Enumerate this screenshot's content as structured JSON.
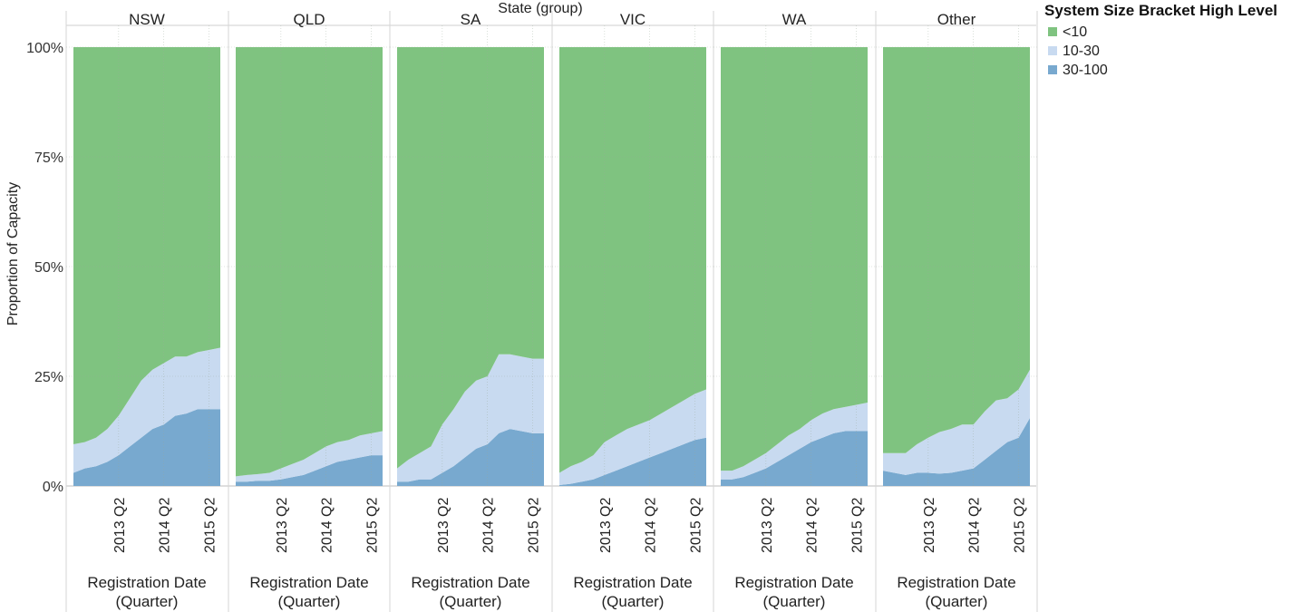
{
  "chart_data": {
    "type": "area",
    "stacked_percent": true,
    "facet_header": "State (group)",
    "ylabel": "Proportion of Capacity",
    "yticks": [
      "0%",
      "25%",
      "50%",
      "75%",
      "100%"
    ],
    "ylim": [
      0,
      1
    ],
    "grid": true,
    "legend": {
      "title": "System Size Bracket High Level",
      "placement": "top-right",
      "entries": [
        "<10",
        "10-30",
        "30-100"
      ]
    },
    "colors": {
      "<10": "#7fc380",
      "10-30": "#c8daf0",
      "30-100": "#78a9cf"
    },
    "x_quarters": [
      "2012 Q2",
      "2012 Q3",
      "2012 Q4",
      "2013 Q1",
      "2013 Q2",
      "2013 Q3",
      "2013 Q4",
      "2014 Q1",
      "2014 Q2",
      "2014 Q3",
      "2014 Q4",
      "2015 Q1",
      "2015 Q2",
      "2015 Q3"
    ],
    "xtick_labels": [
      "2013 Q2",
      "2014 Q2",
      "2015 Q2"
    ],
    "xlabel_lines": [
      "Registration Date",
      "(Quarter)"
    ],
    "panels": [
      {
        "state": "NSW",
        "series": [
          {
            "name": "30-100",
            "values": [
              0.03,
              0.04,
              0.045,
              0.055,
              0.07,
              0.09,
              0.11,
              0.13,
              0.14,
              0.16,
              0.165,
              0.175,
              0.175,
              0.175
            ]
          },
          {
            "name": "10-30",
            "values": [
              0.065,
              0.06,
              0.065,
              0.075,
              0.09,
              0.11,
              0.13,
              0.135,
              0.14,
              0.135,
              0.13,
              0.13,
              0.135,
              0.14
            ]
          },
          {
            "name": "<10",
            "values": [
              0.905,
              0.9,
              0.89,
              0.87,
              0.84,
              0.8,
              0.76,
              0.735,
              0.72,
              0.705,
              0.705,
              0.695,
              0.69,
              0.685
            ]
          }
        ]
      },
      {
        "state": "QLD",
        "series": [
          {
            "name": "30-100",
            "values": [
              0.01,
              0.01,
              0.012,
              0.012,
              0.015,
              0.02,
              0.025,
              0.035,
              0.045,
              0.055,
              0.06,
              0.065,
              0.07,
              0.07
            ]
          },
          {
            "name": "10-30",
            "values": [
              0.012,
              0.015,
              0.015,
              0.018,
              0.025,
              0.03,
              0.035,
              0.04,
              0.045,
              0.045,
              0.045,
              0.05,
              0.05,
              0.055
            ]
          },
          {
            "name": "<10",
            "values": [
              0.978,
              0.975,
              0.973,
              0.97,
              0.96,
              0.95,
              0.94,
              0.925,
              0.91,
              0.9,
              0.895,
              0.885,
              0.88,
              0.875
            ]
          }
        ]
      },
      {
        "state": "SA",
        "series": [
          {
            "name": "30-100",
            "values": [
              0.01,
              0.01,
              0.015,
              0.015,
              0.03,
              0.045,
              0.065,
              0.085,
              0.095,
              0.12,
              0.13,
              0.125,
              0.12,
              0.12
            ]
          },
          {
            "name": "10-30",
            "values": [
              0.03,
              0.05,
              0.06,
              0.075,
              0.11,
              0.13,
              0.15,
              0.155,
              0.155,
              0.18,
              0.17,
              0.17,
              0.17,
              0.17
            ]
          },
          {
            "name": "<10",
            "values": [
              0.96,
              0.94,
              0.925,
              0.91,
              0.86,
              0.825,
              0.785,
              0.76,
              0.75,
              0.7,
              0.7,
              0.705,
              0.71,
              0.71
            ]
          }
        ]
      },
      {
        "state": "VIC",
        "series": [
          {
            "name": "30-100",
            "values": [
              0.002,
              0.005,
              0.01,
              0.015,
              0.025,
              0.035,
              0.045,
              0.055,
              0.065,
              0.075,
              0.085,
              0.095,
              0.105,
              0.11
            ]
          },
          {
            "name": "10-30",
            "values": [
              0.028,
              0.04,
              0.045,
              0.055,
              0.075,
              0.08,
              0.085,
              0.085,
              0.085,
              0.09,
              0.095,
              0.1,
              0.105,
              0.11
            ]
          },
          {
            "name": "<10",
            "values": [
              0.97,
              0.955,
              0.945,
              0.93,
              0.9,
              0.885,
              0.87,
              0.86,
              0.85,
              0.835,
              0.82,
              0.805,
              0.79,
              0.78
            ]
          }
        ]
      },
      {
        "state": "WA",
        "series": [
          {
            "name": "30-100",
            "values": [
              0.015,
              0.015,
              0.02,
              0.03,
              0.04,
              0.055,
              0.07,
              0.085,
              0.1,
              0.11,
              0.12,
              0.125,
              0.125,
              0.125
            ]
          },
          {
            "name": "10-30",
            "values": [
              0.02,
              0.02,
              0.025,
              0.03,
              0.035,
              0.04,
              0.045,
              0.045,
              0.05,
              0.055,
              0.055,
              0.055,
              0.06,
              0.065
            ]
          },
          {
            "name": "<10",
            "values": [
              0.965,
              0.965,
              0.955,
              0.94,
              0.925,
              0.905,
              0.885,
              0.87,
              0.85,
              0.835,
              0.825,
              0.82,
              0.815,
              0.81
            ]
          }
        ]
      },
      {
        "state": "Other",
        "series": [
          {
            "name": "30-100",
            "values": [
              0.035,
              0.03,
              0.025,
              0.03,
              0.03,
              0.028,
              0.03,
              0.035,
              0.04,
              0.06,
              0.08,
              0.1,
              0.11,
              0.155
            ]
          },
          {
            "name": "10-30",
            "values": [
              0.04,
              0.045,
              0.05,
              0.065,
              0.08,
              0.095,
              0.1,
              0.105,
              0.1,
              0.11,
              0.115,
              0.1,
              0.11,
              0.11
            ]
          },
          {
            "name": "<10",
            "values": [
              0.925,
              0.925,
              0.925,
              0.905,
              0.89,
              0.877,
              0.87,
              0.86,
              0.86,
              0.83,
              0.805,
              0.8,
              0.78,
              0.735
            ]
          }
        ]
      }
    ]
  }
}
